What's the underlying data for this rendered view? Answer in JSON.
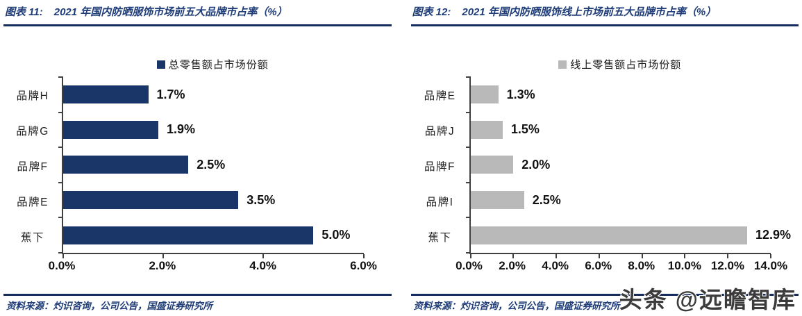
{
  "page": {
    "watermark": "头条 @远瞻智库"
  },
  "colors": {
    "accent_navy_text": "#1E3C78",
    "rule_navy": "#152C5E",
    "axis_gray": "#404040",
    "bar_navy": "#1A3568",
    "bar_gray": "#B9B9B9"
  },
  "chart_data": [
    {
      "type": "bar",
      "orientation": "horizontal",
      "figure_label": "图表 11:",
      "title": "2021 年国内防晒服饰市场前五大品牌市占率（%）",
      "legend": "总零售额占市场份额",
      "legend_position": "top",
      "grid": false,
      "categories": [
        "品牌H",
        "品牌G",
        "品牌F",
        "品牌E",
        "蕉下"
      ],
      "values": [
        1.7,
        1.9,
        2.5,
        3.5,
        5.0
      ],
      "value_labels": [
        "1.7%",
        "1.9%",
        "2.5%",
        "3.5%",
        "5.0%"
      ],
      "xlim": [
        0,
        6
      ],
      "x_ticks": [
        0,
        2,
        4,
        6
      ],
      "x_tick_labels": [
        "0.0%",
        "2.0%",
        "4.0%",
        "6.0%"
      ],
      "bar_color": "#1A3568",
      "source": "资料来源：灼识咨询，公司公告，国盛证券研究所"
    },
    {
      "type": "bar",
      "orientation": "horizontal",
      "figure_label": "图表 12:",
      "title": "2021 年国内防晒服饰线上市场前五大品牌市占率（%）",
      "legend": "线上零售额占市场份额",
      "legend_position": "top",
      "grid": false,
      "categories": [
        "品牌E",
        "品牌J",
        "品牌F",
        "品牌I",
        "蕉下"
      ],
      "values": [
        1.3,
        1.5,
        2.0,
        2.5,
        12.9
      ],
      "value_labels": [
        "1.3%",
        "1.5%",
        "2.0%",
        "2.5%",
        "12.9%"
      ],
      "xlim": [
        0,
        14
      ],
      "x_ticks": [
        0,
        2,
        4,
        6,
        8,
        10,
        12,
        14
      ],
      "x_tick_labels": [
        "0.0%",
        "2.0%",
        "4.0%",
        "6.0%",
        "8.0%",
        "10.0%",
        "12.0%",
        "14.0%"
      ],
      "bar_color": "#B9B9B9",
      "source": "资料来源：灼识咨询，公司公告，国盛证券研究所"
    }
  ]
}
